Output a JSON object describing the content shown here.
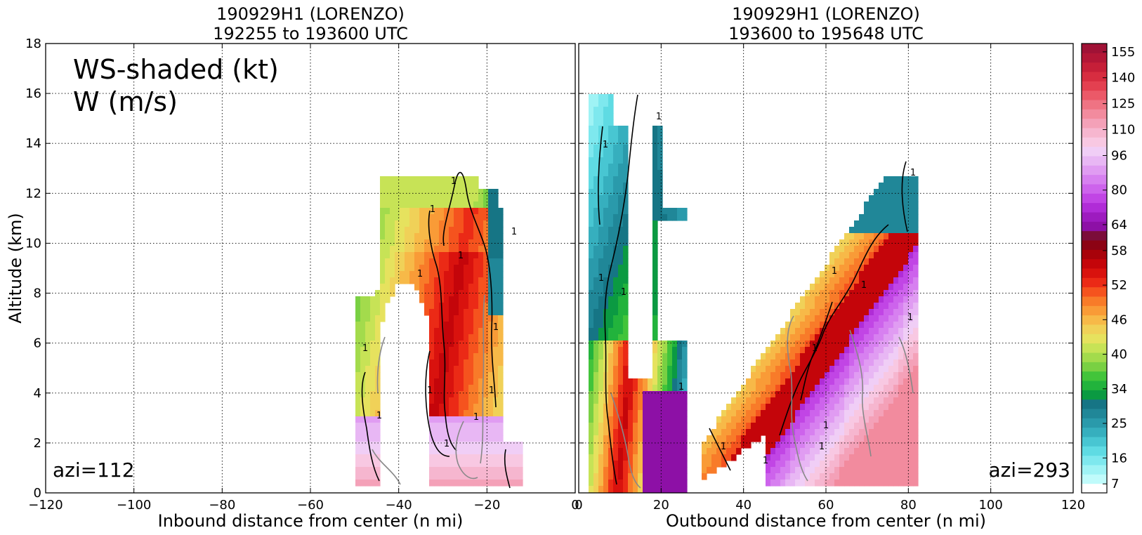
{
  "chart_data": [
    {
      "type": "heatmap",
      "panel": "left",
      "title_line1": "190929H1 (LORENZO)",
      "title_line2": "192255 to 193600 UTC",
      "xlabel": "Inbound distance from center (n mi)",
      "ylabel": "Altitude (km)",
      "xlim": [
        -120,
        0
      ],
      "ylim": [
        0,
        18
      ],
      "xticks": [
        -120,
        -100,
        -80,
        -60,
        -40,
        -20,
        0
      ],
      "yticks": [
        0,
        2,
        4,
        6,
        8,
        10,
        12,
        14,
        16,
        18
      ],
      "grid": true,
      "annotation_line1": "WS-shaded (kt)",
      "annotation_line2": "W (m/s)",
      "azimuth_label": "azi=112",
      "contour_label": "1"
    },
    {
      "type": "heatmap",
      "panel": "right",
      "title_line1": "190929H1 (LORENZO)",
      "title_line2": "193600 to 195648 UTC",
      "xlabel": "Outbound distance from center (n mi)",
      "xlim": [
        0,
        120
      ],
      "ylim": [
        0,
        18
      ],
      "xticks": [
        0,
        20,
        40,
        60,
        80,
        100,
        120
      ],
      "grid": true,
      "azimuth_label": "azi=293",
      "contour_label": "1"
    }
  ],
  "colorbar": {
    "tick_labels": [
      "7",
      "16",
      "25",
      "34",
      "40",
      "46",
      "52",
      "58",
      "64",
      "80",
      "96",
      "110",
      "125",
      "140",
      "155"
    ],
    "colors": [
      "#ffffff",
      "#c0fbfb",
      "#9ff3f5",
      "#7ee8ee",
      "#5fdbe3",
      "#48c6d2",
      "#36afbe",
      "#2a9aab",
      "#208798",
      "#167585",
      "#0b9a42",
      "#22b33c",
      "#42c43a",
      "#79d043",
      "#a3db4c",
      "#c7e356",
      "#e6e25e",
      "#f0d158",
      "#f7b948",
      "#f99b37",
      "#f87b29",
      "#f5531e",
      "#eb2a16",
      "#d9120e",
      "#c4050a",
      "#a8020a",
      "#8c0314",
      "#7b0d3a",
      "#8d10a6",
      "#9d1bbf",
      "#b02cd7",
      "#c145e5",
      "#cd63ec",
      "#d780f0",
      "#e09cf2",
      "#e8b7f4",
      "#f0cef6",
      "#f8c8e2",
      "#f6b6cf",
      "#f4a1b8",
      "#f28b9e",
      "#ef7383",
      "#eb5968",
      "#e34050",
      "#d72d40",
      "#c61f38",
      "#b31636",
      "#a01236"
    ]
  }
}
